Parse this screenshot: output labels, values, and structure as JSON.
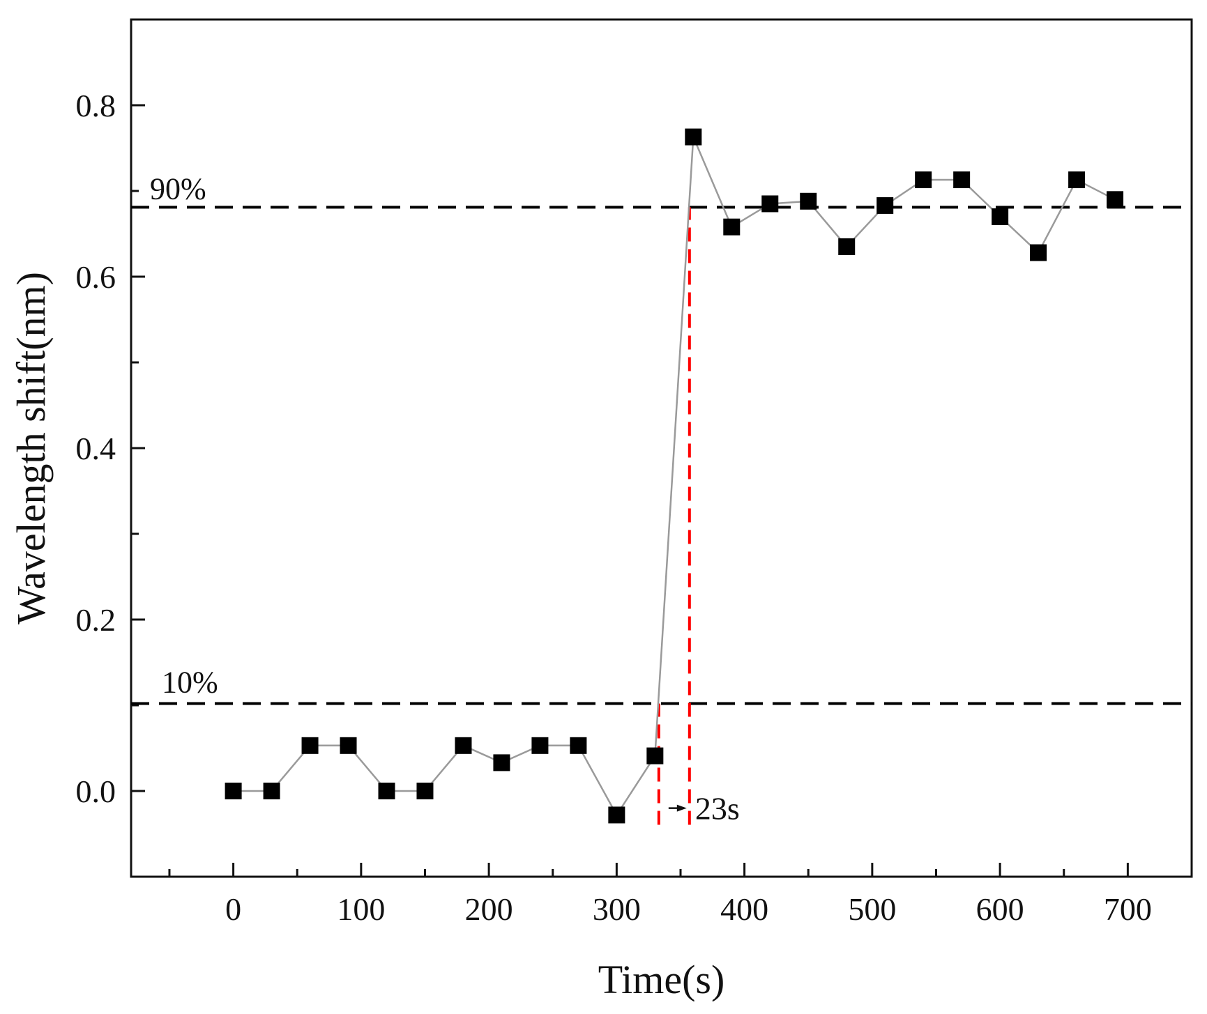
{
  "chart_data": {
    "type": "line",
    "title": "",
    "xlabel": "Time(s)",
    "ylabel": "Wavelength shift(nm)",
    "xlim": [
      -80,
      750
    ],
    "ylim": [
      -0.1,
      0.9
    ],
    "xticks": [
      0,
      100,
      200,
      300,
      400,
      500,
      600,
      700
    ],
    "xtick_labels": [
      "0",
      "100",
      "200",
      "300",
      "400",
      "500",
      "600",
      "700"
    ],
    "xminor_ticks": [
      -50,
      50,
      150,
      250,
      350,
      450,
      550,
      650
    ],
    "yticks": [
      0.0,
      0.2,
      0.4,
      0.6,
      0.8
    ],
    "ytick_labels": [
      "0.0",
      "0.2",
      "0.4",
      "0.6",
      "0.8"
    ],
    "yminor_ticks": [
      -0.1,
      0.1,
      0.3,
      0.5,
      0.7
    ],
    "grid": false,
    "series": [
      {
        "name": "Wavelength shift",
        "marker": "square",
        "color": "#000000",
        "line_color": "#9a9a9a",
        "x": [
          0,
          30,
          60,
          90,
          120,
          150,
          180,
          210,
          240,
          270,
          300,
          330,
          360,
          390,
          420,
          450,
          480,
          510,
          540,
          570,
          600,
          630,
          660,
          690
        ],
        "values": [
          0.0,
          0.0,
          0.053,
          0.053,
          0.0,
          0.0,
          0.053,
          0.033,
          0.053,
          0.053,
          -0.028,
          0.041,
          0.763,
          0.658,
          0.685,
          0.688,
          0.635,
          0.683,
          0.713,
          0.713,
          0.67,
          0.628,
          0.713,
          0.69
        ]
      }
    ],
    "reference_lines": [
      {
        "label": "90%",
        "y": 0.681,
        "color": "#000000",
        "style": "dashed"
      },
      {
        "label": "10%",
        "y": 0.102,
        "color": "#000000",
        "style": "dashed"
      }
    ],
    "markers_vertical": [
      {
        "x": 333,
        "y_from": -0.028,
        "y_to": 0.102,
        "color": "#ff0000",
        "style": "dashed"
      },
      {
        "x": 357,
        "y_from": -0.028,
        "y_to": 0.681,
        "color": "#ff0000",
        "style": "dashed"
      }
    ],
    "annotation": {
      "text": "23s",
      "x_from": 333,
      "x_to": 357,
      "y": -0.02
    }
  }
}
